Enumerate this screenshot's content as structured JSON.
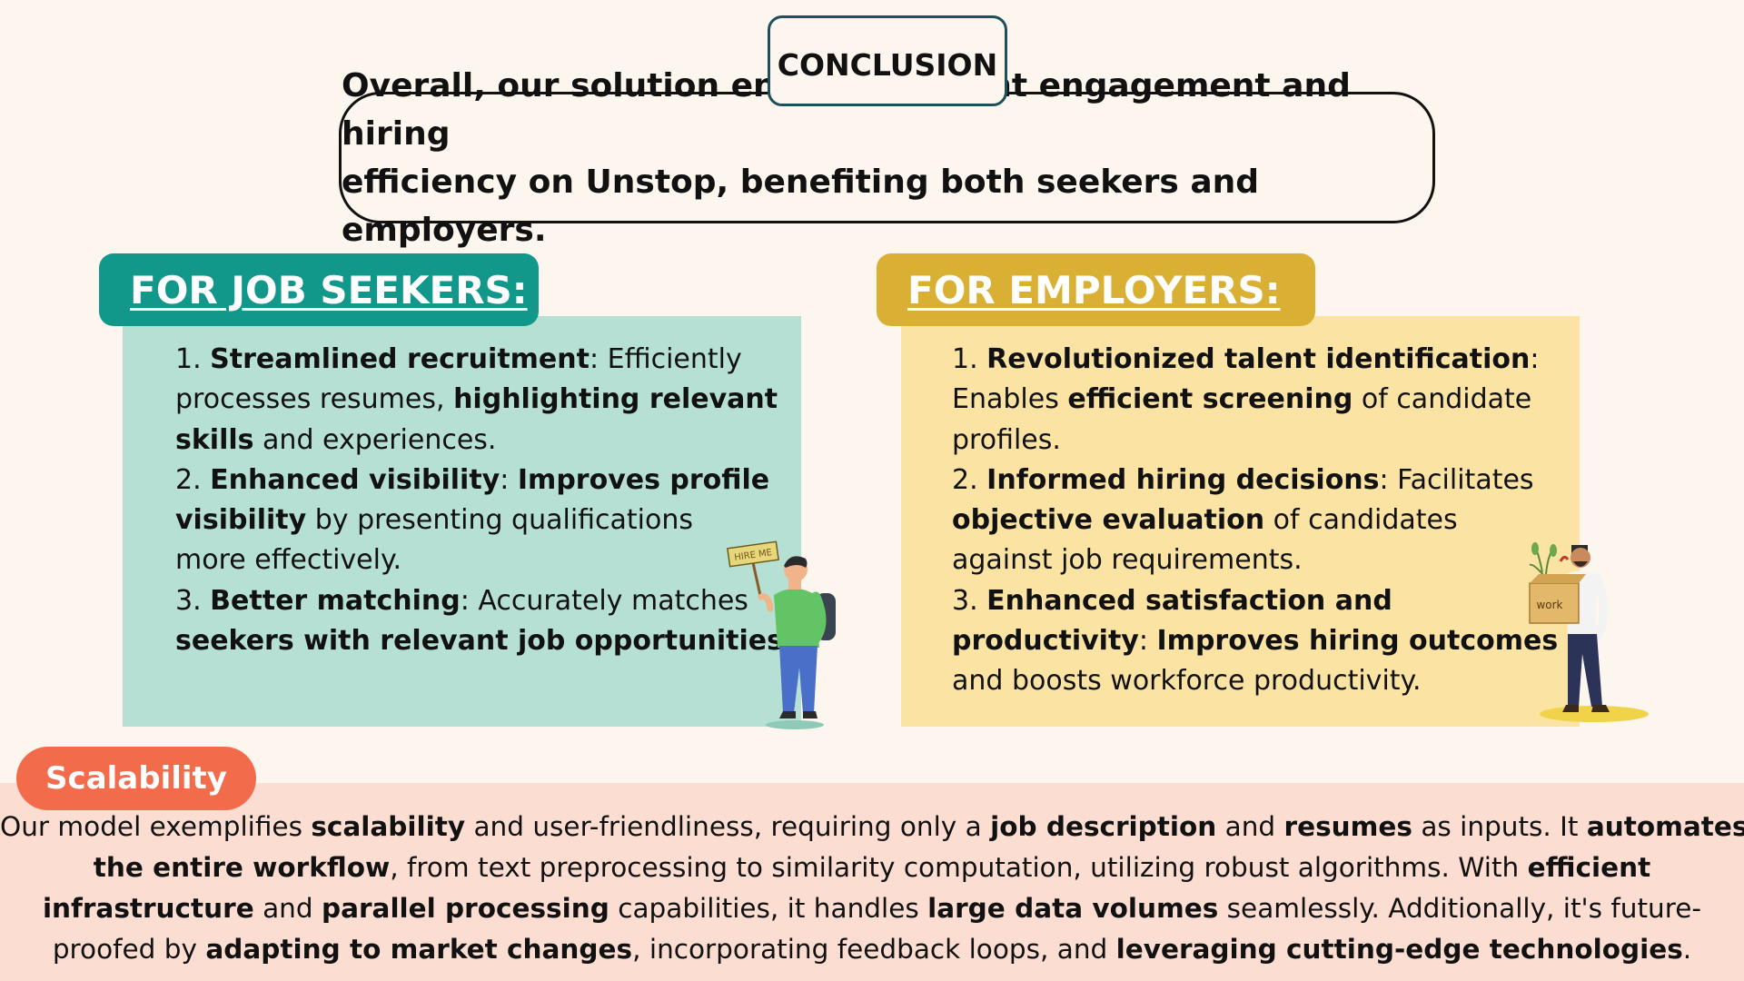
{
  "header": {
    "tab_label": "CONCLUSION",
    "summary_line1": "Overall, our solution enhances talent engagement and hiring",
    "summary_line2": "efficiency on Unstop, benefiting both seekers and employers."
  },
  "seekers": {
    "title": "FOR JOB SEEKERS:",
    "l1a": "1. ",
    "l1b": "Streamlined recruitment",
    "l1c": ": Efficiently",
    "l2a": "processes resumes, ",
    "l2b": "highlighting relevant",
    "l3a": "skills",
    "l3b": " and experiences.",
    "l4a": "2. ",
    "l4b": "Enhanced visibility",
    "l4c": ": ",
    "l4d": "Improves profile",
    "l5a": "visibility",
    "l5b": " by presenting qualifications",
    "l6a": "more effectively.",
    "l7a": "3. ",
    "l7b": "Better matching",
    "l7c": ": Accurately matches",
    "l8a": "seekers with relevant job opportunities",
    "l8b": ".",
    "sign_text": "HIRE ME"
  },
  "employers": {
    "title": "FOR EMPLOYERS:",
    "l1a": "1. ",
    "l1b": "Revolutionized talent identification",
    "l1c": ":",
    "l2a": "Enables ",
    "l2b": "efficient screening",
    "l2c": " of candidate",
    "l3a": "profiles.",
    "l4a": "2. ",
    "l4b": "Informed hiring decisions",
    "l4c": ": Facilitates",
    "l5a": "objective evaluation",
    "l5b": " of candidates",
    "l6a": "against job requirements.",
    "l7a": "3. ",
    "l7b": "Enhanced satisfaction and",
    "l8a": "productivity",
    "l8b": ": ",
    "l8c": "Improves hiring outcomes",
    "l9a": "and boosts workforce productivity.",
    "box_text": "work"
  },
  "scalability": {
    "label": "Scalability",
    "r1a": "Our model exemplifies ",
    "r1b": "scalability",
    "r1c": " and user-friendliness, requiring only a ",
    "r1d": "job description",
    "r1e": " and ",
    "r1f": "resumes",
    "r1g": " as inputs. It ",
    "r1h": "automates",
    "r2a": "the entire workflow",
    "r2b": ", from text preprocessing to similarity computation, utilizing robust algorithms. With ",
    "r2c": "efficient",
    "r3a": "infrastructure",
    "r3b": " and ",
    "r3c": "parallel processing",
    "r3d": " capabilities, it handles ",
    "r3e": "large data volumes",
    "r3f": " seamlessly. Additionally, it's future-",
    "r4a": "proofed by ",
    "r4b": "adapting to market changes",
    "r4c": ", incorporating feedback loops, and ",
    "r4d": "leveraging cutting-edge technologies",
    "r4e": "."
  },
  "colors": {
    "teal": "#11988a",
    "mint_panel": "#b6e0d3",
    "gold": "#d9b033",
    "cream_panel": "#fbe3a4",
    "coral": "#f26b4a",
    "pink_panel": "#fbddd2",
    "background": "#fdf6ee"
  }
}
